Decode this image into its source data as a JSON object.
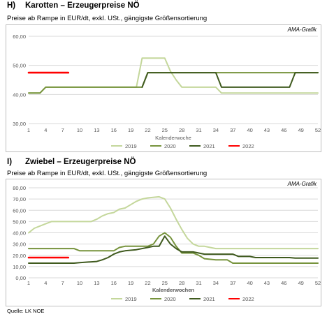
{
  "chart_data": [
    {
      "type": "line",
      "heading_letter": "H)",
      "heading": "Karotten – Erzeugerpreise NÖ",
      "subtitle": "Preise ab Rampe in EUR/dt, exkl. USt., gängigste Größensortierung",
      "credit": "AMA-Grafik",
      "xlabel": "Kalenderwoche",
      "ylabel": "",
      "xlim": [
        1,
        52
      ],
      "ylim": [
        30,
        60
      ],
      "x_ticks": [
        1,
        4,
        7,
        10,
        13,
        16,
        19,
        22,
        25,
        28,
        31,
        34,
        37,
        40,
        43,
        46,
        49,
        52
      ],
      "y_ticks": [
        "30,00",
        "40,00",
        "50,00",
        "60,00"
      ],
      "y_tick_values": [
        30,
        40,
        50,
        60
      ],
      "grid": true,
      "legend_position": "bottom",
      "series": [
        {
          "name": "2019",
          "color": "#c4d79b",
          "points": [
            [
              1,
              40.5
            ],
            [
              3,
              40.5
            ],
            [
              4,
              42.5
            ],
            [
              20,
              42.5
            ],
            [
              21,
              52.5
            ],
            [
              25,
              52.5
            ],
            [
              26,
              48
            ],
            [
              27,
              45
            ],
            [
              28,
              42.5
            ],
            [
              30,
              42.5
            ],
            [
              34,
              42.5
            ],
            [
              35,
              40.5
            ],
            [
              52,
              40.5
            ]
          ]
        },
        {
          "name": "2020",
          "color": "#76933c",
          "points": [
            [
              1,
              40.5
            ],
            [
              3,
              40.5
            ],
            [
              4,
              42.5
            ],
            [
              21,
              42.5
            ],
            [
              22,
              47.5
            ],
            [
              52,
              47.5
            ]
          ]
        },
        {
          "name": "2021",
          "color": "#3f5a1e",
          "points": [
            [
              21,
              42.5
            ],
            [
              22,
              47.5
            ],
            [
              34,
              47.5
            ],
            [
              35,
              42.5
            ],
            [
              47,
              42.5
            ],
            [
              48,
              47.5
            ],
            [
              52,
              47.5
            ]
          ]
        },
        {
          "name": "2022",
          "color": "#ff0000",
          "points": [
            [
              1,
              47.5
            ],
            [
              8,
              47.5
            ]
          ]
        }
      ]
    },
    {
      "type": "line",
      "heading_letter": "I)",
      "heading": "Zwiebel – Erzeugerpreise NÖ",
      "subtitle": "Preise ab Rampe in EUR/dt, exkl. USt., gängigste Größensortierung",
      "credit": "AMA-Grafik",
      "xlabel": "Kalenderwochen",
      "ylabel": "",
      "xlim": [
        1,
        52
      ],
      "ylim": [
        0,
        80
      ],
      "x_ticks": [
        1,
        4,
        7,
        10,
        13,
        16,
        19,
        22,
        25,
        28,
        31,
        34,
        37,
        40,
        43,
        46,
        49,
        52
      ],
      "y_ticks": [
        "0,00",
        "10,00",
        "20,00",
        "30,00",
        "40,00",
        "50,00",
        "60,00",
        "70,00",
        "80,00"
      ],
      "y_tick_values": [
        0,
        10,
        20,
        30,
        40,
        50,
        60,
        70,
        80
      ],
      "grid": true,
      "legend_position": "bottom",
      "series": [
        {
          "name": "2019",
          "color": "#c4d79b",
          "points": [
            [
              1,
              40
            ],
            [
              2,
              44
            ],
            [
              3,
              46
            ],
            [
              4,
              48
            ],
            [
              5,
              50
            ],
            [
              12,
              50
            ],
            [
              13,
              52
            ],
            [
              14,
              55
            ],
            [
              15,
              57
            ],
            [
              16,
              58
            ],
            [
              17,
              61
            ],
            [
              18,
              62
            ],
            [
              19,
              65
            ],
            [
              20,
              68
            ],
            [
              21,
              70
            ],
            [
              22,
              71
            ],
            [
              24,
              72
            ],
            [
              25,
              70
            ],
            [
              26,
              62
            ],
            [
              27,
              52
            ],
            [
              28,
              43
            ],
            [
              29,
              35
            ],
            [
              30,
              30
            ],
            [
              31,
              28
            ],
            [
              32,
              28
            ],
            [
              33,
              27
            ],
            [
              34,
              26
            ],
            [
              52,
              26
            ]
          ]
        },
        {
          "name": "2020",
          "color": "#76933c",
          "points": [
            [
              1,
              26
            ],
            [
              9,
              26
            ],
            [
              10,
              24
            ],
            [
              16,
              24
            ],
            [
              17,
              27
            ],
            [
              18,
              28
            ],
            [
              19,
              28
            ],
            [
              22,
              28
            ],
            [
              23,
              30
            ],
            [
              24,
              37
            ],
            [
              25,
              40
            ],
            [
              26,
              36
            ],
            [
              27,
              28
            ],
            [
              28,
              22
            ],
            [
              30,
              22
            ],
            [
              31,
              20
            ],
            [
              32,
              17
            ],
            [
              34,
              16
            ],
            [
              36,
              16
            ],
            [
              37,
              13
            ],
            [
              52,
              13
            ]
          ]
        },
        {
          "name": "2021",
          "color": "#3f5a1e",
          "points": [
            [
              1,
              13
            ],
            [
              9,
              13
            ],
            [
              10,
              13.5
            ],
            [
              13,
              14.5
            ],
            [
              14,
              16
            ],
            [
              15,
              18
            ],
            [
              16,
              21
            ],
            [
              17,
              23
            ],
            [
              18,
              24
            ],
            [
              20,
              25
            ],
            [
              22,
              27
            ],
            [
              23,
              28
            ],
            [
              24,
              28
            ],
            [
              25,
              37
            ],
            [
              26,
              30
            ],
            [
              27,
              26
            ],
            [
              28,
              23
            ],
            [
              30,
              23
            ],
            [
              32,
              21
            ],
            [
              37,
              21
            ],
            [
              38,
              19
            ],
            [
              40,
              19
            ],
            [
              41,
              18
            ],
            [
              47,
              18
            ],
            [
              48,
              17.5
            ],
            [
              52,
              17.5
            ]
          ]
        },
        {
          "name": "2022",
          "color": "#ff0000",
          "points": [
            [
              1,
              18
            ],
            [
              8,
              18
            ]
          ]
        }
      ]
    }
  ],
  "source": "Quelle: LK NOE"
}
